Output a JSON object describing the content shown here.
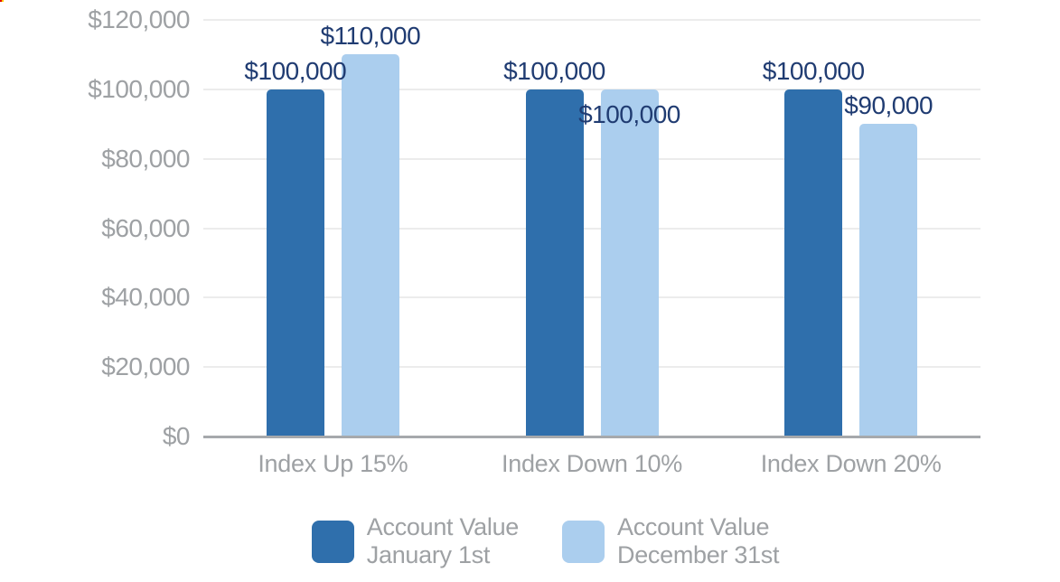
{
  "chart_data": {
    "type": "bar",
    "title": "",
    "xlabel": "",
    "ylabel": "",
    "categories": [
      "Index Up 15%",
      "Index Down 10%",
      "Index Down 20%"
    ],
    "series": [
      {
        "name": "Account Value January 1st",
        "color": "#2F6FAC",
        "values": [
          100000,
          100000,
          100000
        ],
        "data_labels": [
          "$100,000",
          "$100,000",
          "$100,000"
        ],
        "label_placements": [
          "above",
          "above",
          "above"
        ]
      },
      {
        "name": "Account Value December 31st",
        "color": "#ABCEEE",
        "values": [
          110000,
          100000,
          90000
        ],
        "data_labels": [
          "$110,000",
          "$100,000",
          "$90,000"
        ],
        "label_placements": [
          "above",
          "below-top",
          "above"
        ]
      }
    ],
    "ylim": [
      0,
      120000
    ],
    "y_tick_step": 20000,
    "y_tick_labels": [
      "$0",
      "$20,000",
      "$40,000",
      "$60,000",
      "$80,000",
      "$100,000",
      "$120,000"
    ],
    "grid": true,
    "legend_position": "bottom",
    "colors": {
      "data_label": "#203C72",
      "axis_text": "#9EA1A4",
      "gridline": "#ECECEC",
      "baseline": "#A6A9AC"
    }
  },
  "legend": {
    "items": [
      {
        "line1": "Account Value",
        "line2": "January 1st",
        "color": "#2F6FAC"
      },
      {
        "line1": "Account Value",
        "line2": "December 31st",
        "color": "#ABCEEE"
      }
    ]
  }
}
